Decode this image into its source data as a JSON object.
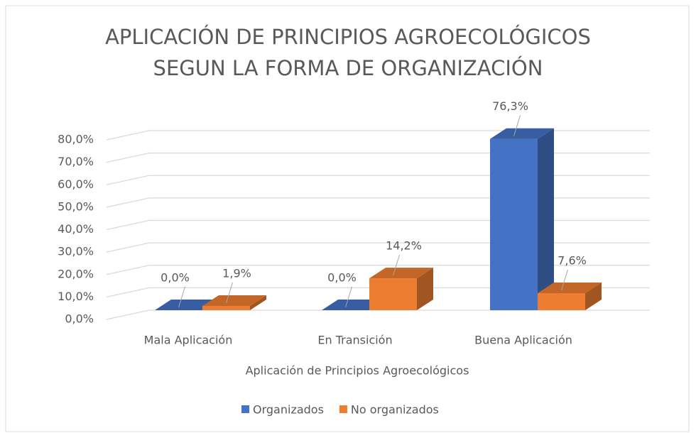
{
  "chart_data": {
    "type": "bar3d",
    "title": "APLICACIÓN DE PRINCIPIOS AGROECOLÓGICOS SEGUN LA FORMA DE ORGANIZACIÓN",
    "x_label": "Aplicación de Principios Agroecológicos",
    "categories": [
      "Mala Aplicación",
      "En Transición",
      "Buena Aplicación"
    ],
    "series": [
      {
        "name": "Organizados",
        "color": "#4472c4",
        "values": [
          0,
          0,
          76.3
        ],
        "value_labels": [
          "0,0%",
          "0,0%",
          "76,3%"
        ]
      },
      {
        "name": "No organizados",
        "color": "#ed7d31",
        "values": [
          1.9,
          14.2,
          7.6
        ],
        "value_labels": [
          "1,9%",
          "14,2%",
          "7,6%"
        ]
      }
    ],
    "ylim": [
      0,
      80
    ],
    "yticks": [
      {
        "value": 0,
        "label": "0,0%"
      },
      {
        "value": 10,
        "label": "10,0%"
      },
      {
        "value": 20,
        "label": "20,0%"
      },
      {
        "value": 30,
        "label": "30,0%"
      },
      {
        "value": 40,
        "label": "40,0%"
      },
      {
        "value": 50,
        "label": "50,0%"
      },
      {
        "value": 60,
        "label": "60,0%"
      },
      {
        "value": 70,
        "label": "70,0%"
      },
      {
        "value": 80,
        "label": "80,0%"
      }
    ],
    "grid": true,
    "legend": "bottom"
  }
}
